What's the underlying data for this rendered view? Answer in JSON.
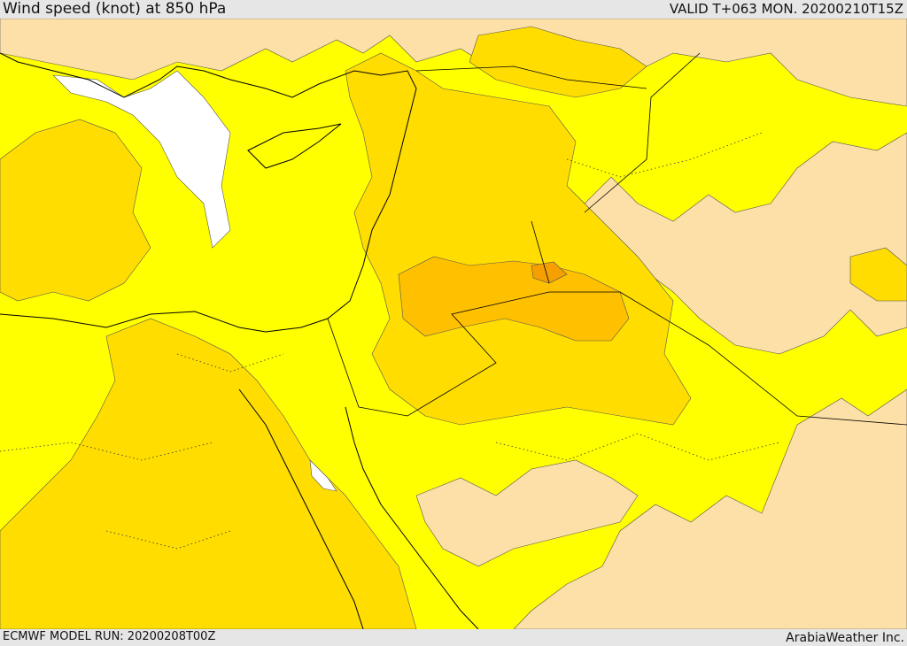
{
  "header": {
    "title": "Wind speed (knot) at 850 hPa",
    "valid": "VALID T+063 MON. 20200210T15Z"
  },
  "footer": {
    "model_run": "ECMWF MODEL RUN: 20200208T00Z",
    "credit": "ArabiaWeather Inc."
  },
  "colors": {
    "band_lowest": "#ffffff",
    "band_low": "#fde0a8",
    "band_mid": "#ffff00",
    "band_high": "#ffdd00",
    "band_higher": "#ffc000",
    "band_highest": "#f5a000",
    "coastline": "#000000",
    "contour": "#555555"
  }
}
